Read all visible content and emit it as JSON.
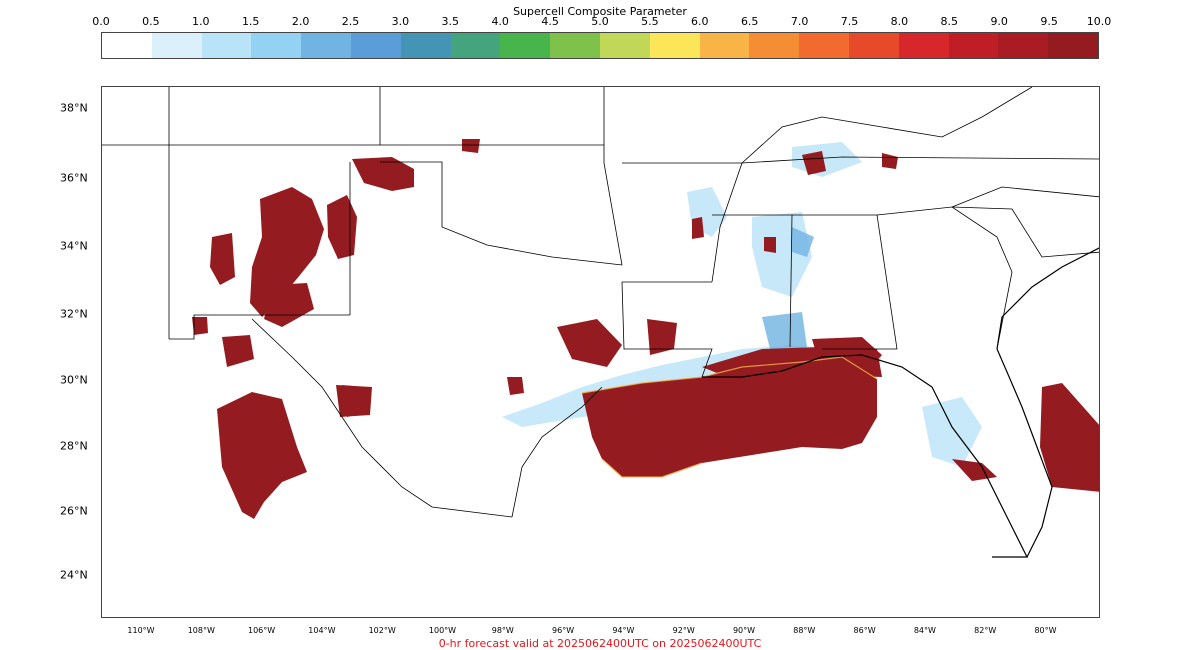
{
  "colorbar": {
    "title": "Supercell Composite Parameter",
    "ticks": [
      "0.0",
      "0.5",
      "1.0",
      "1.5",
      "2.0",
      "2.5",
      "3.0",
      "3.5",
      "4.0",
      "4.5",
      "5.0",
      "5.5",
      "6.0",
      "6.5",
      "7.0",
      "7.5",
      "8.0",
      "8.5",
      "9.0",
      "9.5",
      "10.0"
    ],
    "colors": [
      "#ffffff",
      "#dcf0fc",
      "#b9e3f7",
      "#94d2f3",
      "#71b3e2",
      "#5b9dd8",
      "#4494b6",
      "#43a47e",
      "#47b44c",
      "#7fc24b",
      "#c0d757",
      "#fbe558",
      "#f8b447",
      "#f58d35",
      "#f26a2d",
      "#e74a2a",
      "#d8272a",
      "#c01e27",
      "#aa1c24",
      "#941c20"
    ]
  },
  "map": {
    "lat_labels": [
      "38°N",
      "36°N",
      "34°N",
      "32°N",
      "30°N",
      "28°N",
      "26°N",
      "24°N"
    ],
    "lon_labels": [
      "110°W",
      "108°W",
      "106°W",
      "104°W",
      "102°W",
      "100°W",
      "98°W",
      "96°W",
      "94°W",
      "92°W",
      "90°W",
      "88°W",
      "86°W",
      "84°W",
      "82°W",
      "80°W"
    ],
    "fill_color": "#941c20",
    "light_colors": [
      "#dcf0fc",
      "#b9e3f7",
      "#71b3e2"
    ]
  },
  "caption": "0-hr forecast valid at 2025062400UTC on 2025062400UTC"
}
